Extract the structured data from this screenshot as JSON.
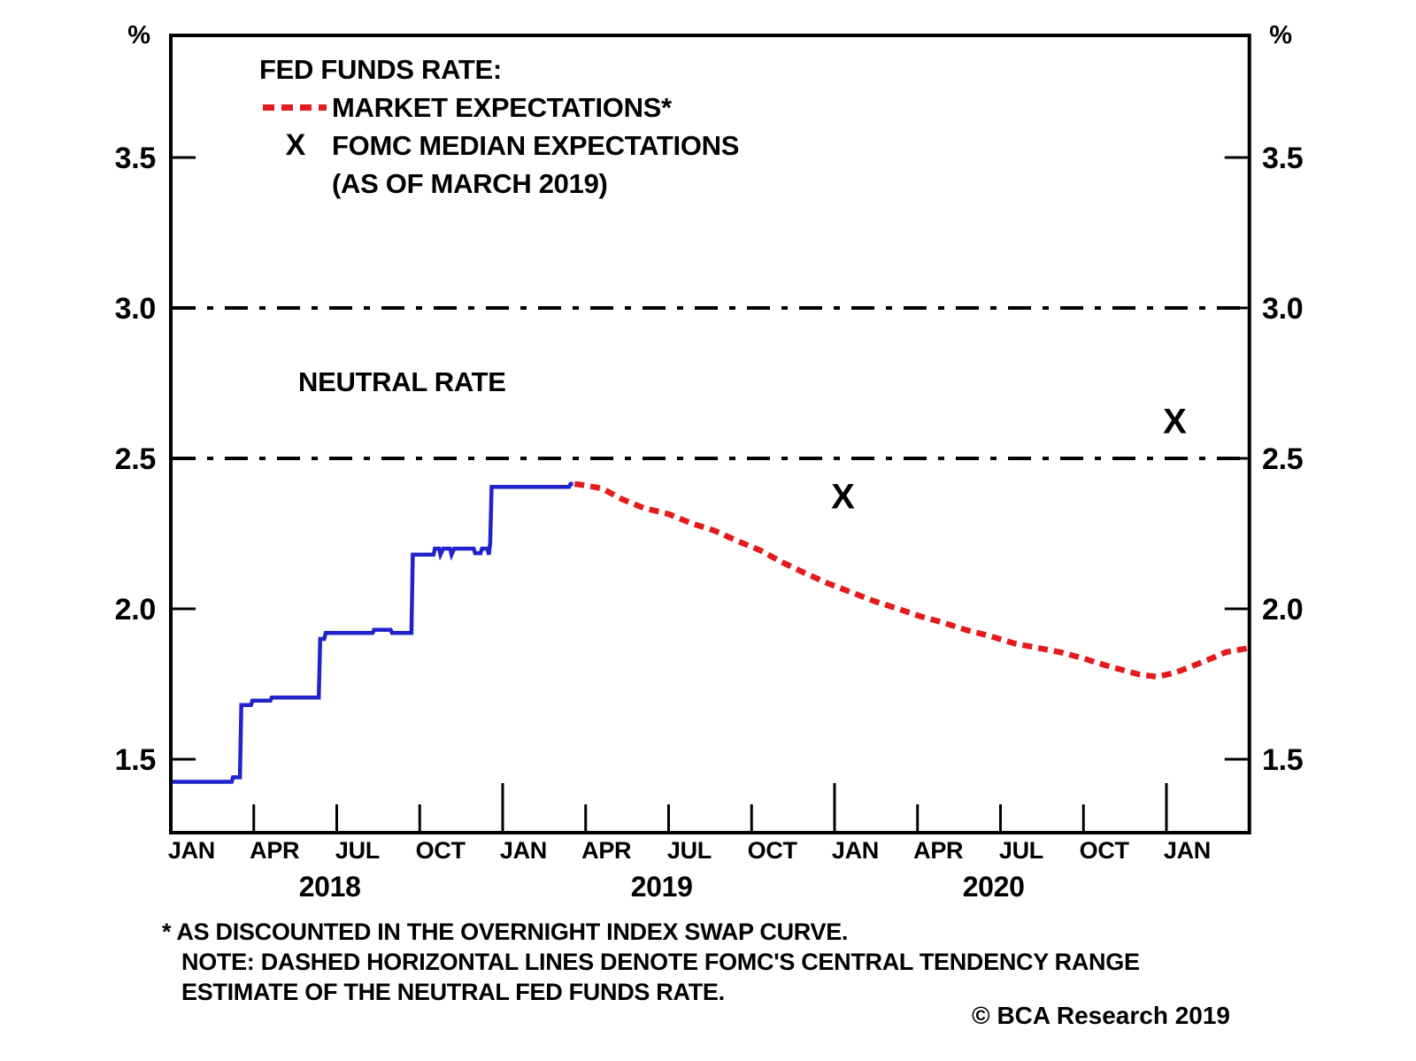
{
  "y_unit": "%",
  "legend": {
    "title": "FED FUNDS RATE:",
    "market": "MARKET EXPECTATIONS*",
    "fomc_marker": "X",
    "fomc": "FOMC MEDIAN EXPECTATIONS",
    "fomc_note": "(AS OF MARCH 2019)"
  },
  "annotations": {
    "neutral_rate": "NEUTRAL RATE"
  },
  "footnotes": {
    "line1": "* AS DISCOUNTED IN THE OVERNIGHT INDEX SWAP CURVE.",
    "line2": "NOTE: DASHED HORIZONTAL LINES DENOTE FOMC'S CENTRAL TENDENCY RANGE",
    "line3": "ESTIMATE OF THE NEUTRAL FED FUNDS RATE."
  },
  "copyright": "© BCA Research 2019",
  "colors": {
    "actual_line": "#2222cc",
    "expectations_line": "#e51a1c",
    "axis": "#000000"
  },
  "chart_data": {
    "type": "line",
    "title": "FED FUNDS RATE:",
    "x_unit": "months since Jan 2018",
    "y_axis": {
      "unit": "%",
      "min": 1.25,
      "max": 3.9,
      "ticks": [
        {
          "v": 1.5,
          "t": "1.5"
        },
        {
          "v": 2.0,
          "t": "2.0"
        },
        {
          "v": 2.5,
          "t": "2.5"
        },
        {
          "v": 3.0,
          "t": "3.0"
        },
        {
          "v": 3.5,
          "t": "3.5"
        }
      ]
    },
    "x_axis": {
      "quarter_tick_months": [
        3,
        6,
        9,
        15,
        18,
        21,
        27,
        30,
        33
      ],
      "year_tick_months": [
        12,
        24,
        36
      ],
      "month_labels": [
        {
          "m": 0.75,
          "t": "JAN"
        },
        {
          "m": 3.75,
          "t": "APR"
        },
        {
          "m": 6.75,
          "t": "JUL"
        },
        {
          "m": 9.75,
          "t": "OCT"
        },
        {
          "m": 12.75,
          "t": "JAN"
        },
        {
          "m": 15.75,
          "t": "APR"
        },
        {
          "m": 18.75,
          "t": "JUL"
        },
        {
          "m": 21.75,
          "t": "OCT"
        },
        {
          "m": 24.75,
          "t": "JAN"
        },
        {
          "m": 27.75,
          "t": "APR"
        },
        {
          "m": 30.75,
          "t": "JUL"
        },
        {
          "m": 33.75,
          "t": "OCT"
        },
        {
          "m": 36.75,
          "t": "JAN"
        }
      ],
      "year_labels": [
        {
          "m": 5.75,
          "t": "2018"
        },
        {
          "m": 17.75,
          "t": "2019"
        },
        {
          "m": 29.75,
          "t": "2020"
        }
      ]
    },
    "neutral_range_lines": {
      "values": [
        2.5,
        3.0
      ],
      "label": "NEUTRAL RATE",
      "style": "dash-dot"
    },
    "series": [
      {
        "name": "FED FUNDS RATE (ACTUAL)",
        "style": "solid",
        "color": "#2222cc",
        "points": [
          [
            0,
            1.425
          ],
          [
            2.2,
            1.425
          ],
          [
            2.25,
            1.44
          ],
          [
            2.5,
            1.44
          ],
          [
            2.55,
            1.68
          ],
          [
            2.9,
            1.68
          ],
          [
            2.95,
            1.695
          ],
          [
            3.6,
            1.695
          ],
          [
            3.65,
            1.705
          ],
          [
            5.35,
            1.705
          ],
          [
            5.4,
            1.9
          ],
          [
            5.55,
            1.9
          ],
          [
            5.6,
            1.92
          ],
          [
            7.3,
            1.92
          ],
          [
            7.35,
            1.93
          ],
          [
            7.95,
            1.93
          ],
          [
            8.0,
            1.92
          ],
          [
            8.7,
            1.92
          ],
          [
            8.75,
            2.18
          ],
          [
            9.5,
            2.18
          ],
          [
            9.55,
            2.2
          ],
          [
            9.7,
            2.2
          ],
          [
            9.75,
            2.18
          ],
          [
            9.85,
            2.2
          ],
          [
            10.1,
            2.2
          ],
          [
            10.15,
            2.18
          ],
          [
            10.25,
            2.2
          ],
          [
            10.95,
            2.2
          ],
          [
            11.0,
            2.185
          ],
          [
            11.2,
            2.185
          ],
          [
            11.25,
            2.2
          ],
          [
            11.45,
            2.2
          ],
          [
            11.5,
            2.18
          ],
          [
            11.55,
            2.22
          ],
          [
            11.6,
            2.405
          ],
          [
            14.4,
            2.405
          ],
          [
            14.45,
            2.415
          ],
          [
            14.55,
            2.415
          ]
        ]
      },
      {
        "name": "MARKET EXPECTATIONS*",
        "style": "dashed",
        "color": "#e51a1c",
        "points": [
          [
            14.6,
            2.415
          ],
          [
            15.0,
            2.41
          ],
          [
            15.6,
            2.4
          ],
          [
            16.3,
            2.365
          ],
          [
            17.1,
            2.335
          ],
          [
            18.0,
            2.315
          ],
          [
            18.8,
            2.285
          ],
          [
            19.65,
            2.26
          ],
          [
            20.5,
            2.225
          ],
          [
            21.3,
            2.195
          ],
          [
            22.1,
            2.155
          ],
          [
            22.9,
            2.12
          ],
          [
            23.75,
            2.085
          ],
          [
            24.6,
            2.055
          ],
          [
            25.45,
            2.025
          ],
          [
            26.3,
            2.0
          ],
          [
            27.1,
            1.975
          ],
          [
            27.9,
            1.955
          ],
          [
            28.75,
            1.93
          ],
          [
            29.6,
            1.91
          ],
          [
            30.5,
            1.885
          ],
          [
            31.35,
            1.87
          ],
          [
            32.2,
            1.855
          ],
          [
            33.0,
            1.835
          ],
          [
            33.8,
            1.812
          ],
          [
            34.4,
            1.797
          ],
          [
            35.0,
            1.782
          ],
          [
            35.65,
            1.774
          ],
          [
            36.3,
            1.787
          ],
          [
            37.0,
            1.812
          ],
          [
            37.6,
            1.834
          ],
          [
            38.15,
            1.856
          ],
          [
            39.0,
            1.87
          ]
        ]
      },
      {
        "name": "FOMC MEDIAN EXPECTATIONS (AS OF MARCH 2019)",
        "style": "x_markers",
        "color": "#000000",
        "points": [
          [
            24.3,
            2.375
          ],
          [
            36.3,
            2.625
          ]
        ]
      }
    ]
  }
}
